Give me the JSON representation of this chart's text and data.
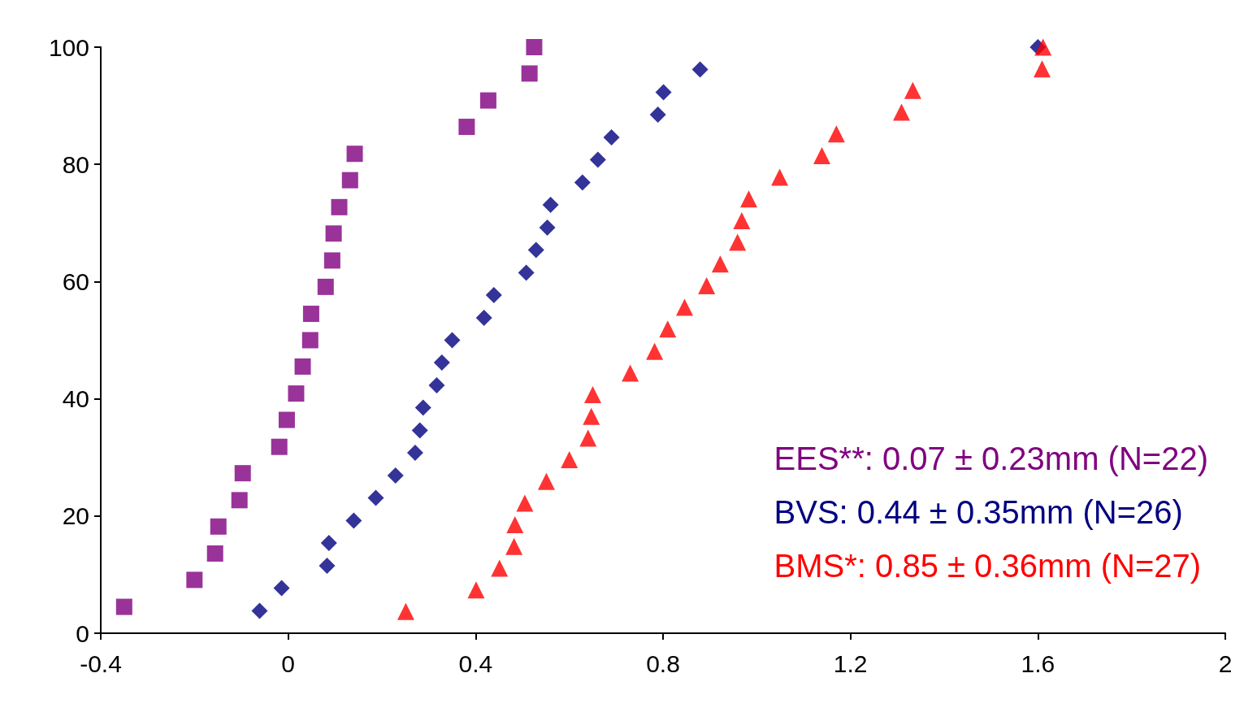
{
  "chart_data": {
    "type": "scatter",
    "xlim": [
      -0.4,
      2
    ],
    "xticks": [
      -0.4,
      0,
      0.4,
      0.8,
      1.2,
      1.6,
      2
    ],
    "ylim": [
      0,
      100
    ],
    "yticks": [
      0,
      20,
      40,
      60,
      80,
      100
    ],
    "grid": false,
    "legend": "bottom right",
    "series": [
      {
        "name": "EES**: 0.07 ± 0.23mm (N=22)",
        "color": "#800080",
        "marker": "square",
        "x": [
          -0.35,
          -0.2,
          -0.156,
          -0.149,
          -0.104,
          -0.097,
          -0.019,
          -0.003,
          0.017,
          0.031,
          0.047,
          0.049,
          0.08,
          0.094,
          0.097,
          0.109,
          0.132,
          0.142,
          0.381,
          0.427,
          0.515,
          0.525
        ],
        "values": [
          4.5,
          9.1,
          13.6,
          18.2,
          22.7,
          27.3,
          31.8,
          36.4,
          40.9,
          45.5,
          50,
          54.5,
          59.1,
          63.6,
          68.2,
          72.7,
          77.3,
          81.8,
          86.4,
          90.9,
          95.5,
          100
        ]
      },
      {
        "name": "BVS: 0.44 ± 0.35mm (N=26)",
        "color": "#000080",
        "marker": "diamond",
        "x": [
          -0.061,
          -0.014,
          0.083,
          0.087,
          0.14,
          0.187,
          0.229,
          0.271,
          0.281,
          0.288,
          0.317,
          0.328,
          0.35,
          0.418,
          0.439,
          0.508,
          0.529,
          0.553,
          0.56,
          0.628,
          0.661,
          0.69,
          0.789,
          0.801,
          0.879,
          1.6
        ],
        "values": [
          3.8,
          7.7,
          11.5,
          15.4,
          19.2,
          23.1,
          26.9,
          30.8,
          34.6,
          38.5,
          42.3,
          46.2,
          50,
          53.8,
          57.7,
          61.5,
          65.4,
          69.2,
          73.1,
          76.9,
          80.8,
          84.6,
          88.5,
          92.3,
          96.2,
          100
        ]
      },
      {
        "name": "BMS*: 0.85 ± 0.36mm (N=27)",
        "color": "#ff0000",
        "marker": "triangle",
        "x": [
          0.251,
          0.401,
          0.451,
          0.482,
          0.484,
          0.505,
          0.551,
          0.6,
          0.64,
          0.647,
          0.65,
          0.73,
          0.782,
          0.81,
          0.846,
          0.893,
          0.922,
          0.959,
          0.968,
          0.983,
          1.049,
          1.139,
          1.17,
          1.309,
          1.333,
          1.609,
          1.611
        ],
        "values": [
          3.7,
          7.4,
          11.1,
          14.8,
          18.5,
          22.2,
          25.9,
          29.6,
          33.3,
          37,
          40.7,
          44.4,
          48.1,
          51.9,
          55.6,
          59.3,
          63,
          66.7,
          70.4,
          74.1,
          77.8,
          81.5,
          85.2,
          88.9,
          92.6,
          96.3,
          100
        ]
      }
    ]
  }
}
